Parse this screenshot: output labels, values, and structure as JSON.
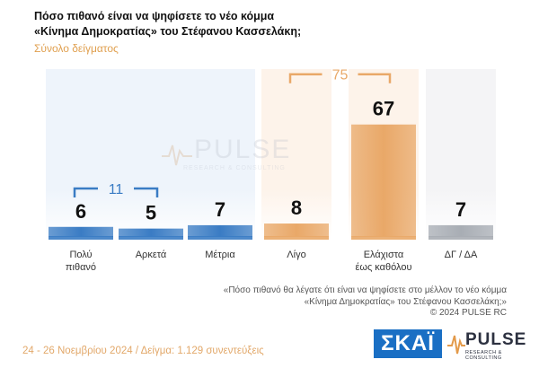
{
  "header": {
    "title_line1": "Πόσο πιθανό είναι να ψηφίσετε το νέο κόμμα",
    "title_line2": "«Κίνημα Δημοκρατίας» του Στέφανου Κασσελάκη;",
    "subtitle": "Σύνολο δείγματος"
  },
  "watermark": {
    "brand": "PULSE",
    "tagline": "RESEARCH & CONSULTING"
  },
  "chart_data": {
    "type": "bar",
    "categories": [
      "Πολύ πιθανό",
      "Αρκετά",
      "Μέτρια",
      "Λίγο",
      "Ελάχιστα έως καθόλου",
      "ΔΓ / ΔΑ"
    ],
    "category_lines": [
      [
        "Πολύ",
        "πιθανό"
      ],
      [
        "Αρκετά"
      ],
      [
        "Μέτρια"
      ],
      [
        "Λίγο"
      ],
      [
        "Ελάχιστα",
        "έως καθόλου"
      ],
      [
        "ΔΓ / ΔΑ"
      ]
    ],
    "values": [
      6,
      5,
      7,
      8,
      67,
      7
    ],
    "value_labels": [
      "6",
      "5",
      "7",
      "8",
      "67",
      "7"
    ],
    "groups": [
      {
        "label": "11",
        "from": 0,
        "to": 1
      },
      {
        "label": "75",
        "from": 3,
        "to": 4
      }
    ],
    "colors": {
      "blue": "#3a7cc4",
      "grey": "#a8adb4",
      "orange": "#e9a868",
      "blue_bg": "#eef4fb",
      "orange_bg": "#fdf3ea",
      "grey_bg": "#f4f4f6"
    },
    "ylim": [
      0,
      100
    ]
  },
  "footnote": {
    "line1": "«Πόσο πιθανό θα λέγατε ότι είναι να ψηφίσετε στο μέλλον το νέο κόμμα",
    "line2": "«Κίνημα Δημοκρατίας» του Στέφανου Κασσελάκη;»",
    "line3": "© 2024 PULSE RC"
  },
  "footer": {
    "text": "24 - 26 Νοεμβρίου 2024 / Δείγμα: 1.129 συνεντεύξεις"
  },
  "logos": {
    "skai": "ΣΚΑΪ",
    "pulse": "PULSE",
    "pulse_tagline": "RESEARCH & CONSULTING"
  }
}
